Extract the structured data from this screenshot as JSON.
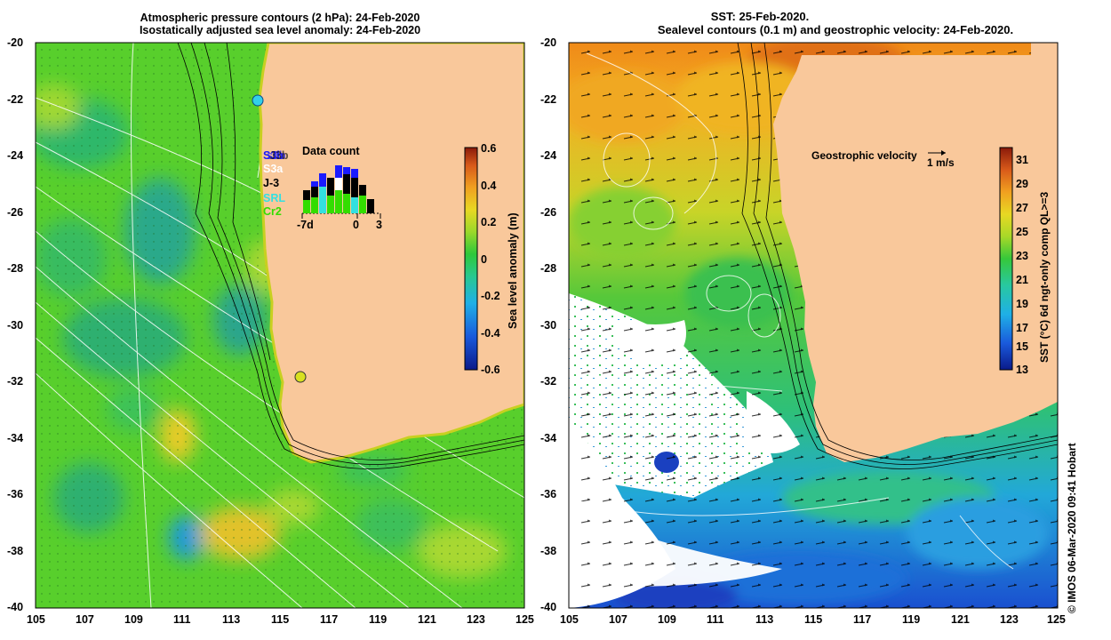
{
  "left_panel": {
    "title_line1": "Atmospheric pressure contours (2 hPa): 24-Feb-2020",
    "title_line2": "Isostatically adjusted sea level anomaly: 24-Feb-2020",
    "lat_ticks": [
      "-20",
      "-22",
      "-24",
      "-26",
      "-28",
      "-30",
      "-32",
      "-34",
      "-36",
      "-38",
      "-40"
    ],
    "lon_ticks": [
      "105",
      "107",
      "109",
      "111",
      "113",
      "115",
      "117",
      "119",
      "121",
      "123",
      "125"
    ],
    "colorbar": {
      "label": "Sea level anomaly (m)",
      "ticks": [
        "0.6",
        "0.4",
        "0.2",
        "0",
        "-0.2",
        "-0.4",
        "-0.6"
      ]
    },
    "data_count": {
      "title": "Data count",
      "missions": [
        {
          "name": "S3b",
          "color": "#1a1aff"
        },
        {
          "name": "s3b",
          "color": "#1a1aff"
        },
        {
          "name": "J3b",
          "color": "#000000"
        },
        {
          "name": "S3a",
          "color": "#ffffff"
        },
        {
          "name": "J-3",
          "color": "#000000"
        },
        {
          "name": "SRL",
          "color": "#33e0e0"
        },
        {
          "name": "Cr2",
          "color": "#33dd00"
        }
      ],
      "axis_labels": [
        "-7d",
        "0",
        "3"
      ]
    }
  },
  "right_panel": {
    "title_line1": "SST: 25-Feb-2020.",
    "title_line2": "Sealevel contours (0.1 m) and geostrophic velocity: 24-Feb-2020.",
    "lat_ticks": [
      "-20",
      "-22",
      "-24",
      "-26",
      "-28",
      "-30",
      "-32",
      "-34",
      "-36",
      "-38",
      "-40"
    ],
    "lon_ticks": [
      "105",
      "107",
      "109",
      "111",
      "113",
      "115",
      "117",
      "119",
      "121",
      "123",
      "125"
    ],
    "velocity_legend": "Geostrophic velocity",
    "velocity_scale": "1 m/s",
    "colorbar": {
      "label": "SST (°C) 6d ngt-only comp QL>=3",
      "ticks": [
        "31",
        "29",
        "27",
        "25",
        "23",
        "21",
        "19",
        "17",
        "15",
        "13"
      ]
    }
  },
  "credit": "© IMOS 06-Mar-2020 09:41 Hobart",
  "colors": {
    "land": "#f9c89b",
    "ocean_green": "#54d22c",
    "ocean_blue": "#1e8fe0",
    "sst_orange": "#f0a020",
    "cloud": "#ffffff"
  }
}
